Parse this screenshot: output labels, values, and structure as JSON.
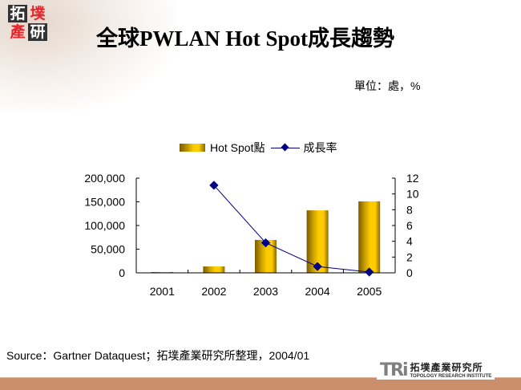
{
  "header": {
    "logo_chars": [
      "拓",
      "墣",
      "產",
      "研"
    ],
    "title": "全球PWLAN Hot Spot成長趨勢",
    "unit": "單位：處，%"
  },
  "legend": {
    "bar_label": "Hot Spot點",
    "line_label": "成長率"
  },
  "footer": {
    "source": "Source：Gartner Dataquest；拓墣產業研究所整理，2004/01",
    "org_mark": "TRi",
    "org_name_cn": "拓墣產業研究所",
    "org_name_en": "TOPOLOGY RESEARCH INSTITUTE"
  },
  "colors": {
    "bar_dark": "#7a5a00",
    "bar_light": "#ffcc00",
    "line": "#000080",
    "footer_band": "#c98e6a"
  },
  "chart_data": {
    "type": "bar+line",
    "title": "全球PWLAN Hot Spot成長趨勢",
    "categories": [
      "2001",
      "2002",
      "2003",
      "2004",
      "2005"
    ],
    "series": [
      {
        "name": "Hot Spot點",
        "type": "bar",
        "axis": "left",
        "values": [
          1500,
          13500,
          69500,
          132000,
          151000
        ]
      },
      {
        "name": "成長率",
        "type": "line",
        "axis": "right",
        "values": [
          null,
          11.1,
          3.8,
          0.8,
          0.1
        ]
      }
    ],
    "left_axis": {
      "min": 0,
      "max": 200000,
      "ticks": [
        "0",
        "50,000",
        "100,000",
        "150,000",
        "200,000"
      ]
    },
    "right_axis": {
      "min": 0,
      "max": 12,
      "ticks": [
        "0",
        "2",
        "4",
        "6",
        "8",
        "10",
        "12"
      ]
    },
    "xlabel": "",
    "ylabel": "單位：處，%",
    "legend_position": "top",
    "grid": false
  }
}
